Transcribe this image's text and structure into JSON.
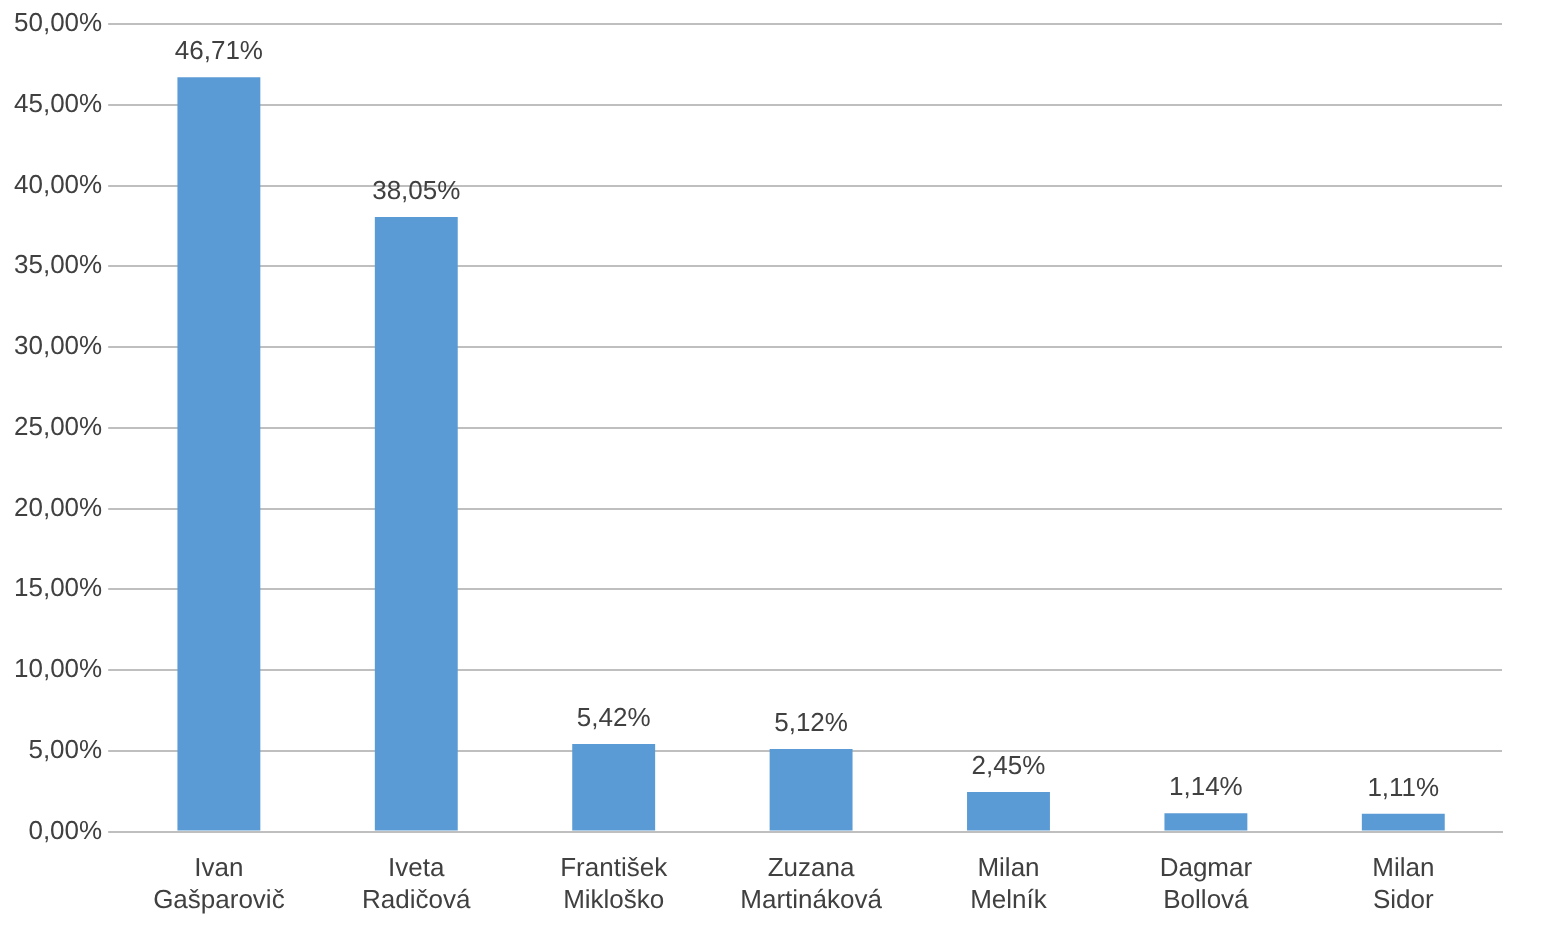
{
  "chart_data": {
    "type": "bar",
    "categories": [
      "Ivan Gašparovič",
      "Iveta Radičová",
      "František Mikloško",
      "Zuzana Martináková",
      "Milan Melník",
      "Dagmar Bollová",
      "Milan Sidor"
    ],
    "values": [
      46.71,
      38.05,
      5.42,
      5.12,
      2.45,
      1.14,
      1.11
    ],
    "value_labels": [
      "46,71%",
      "38,05%",
      "5,42%",
      "5,12%",
      "2,45%",
      "1,14%",
      "1,11%"
    ],
    "color": "#5b9bd5",
    "ylim": [
      0,
      50
    ],
    "yticks": [
      {
        "value": 0,
        "label": "0,00%"
      },
      {
        "value": 5,
        "label": "5,00%"
      },
      {
        "value": 10,
        "label": "10,00%"
      },
      {
        "value": 15,
        "label": "15,00%"
      },
      {
        "value": 20,
        "label": "20,00%"
      },
      {
        "value": 25,
        "label": "25,00%"
      },
      {
        "value": 30,
        "label": "30,00%"
      },
      {
        "value": 35,
        "label": "35,00%"
      },
      {
        "value": 40,
        "label": "40,00%"
      },
      {
        "value": 45,
        "label": "45,00%"
      },
      {
        "value": 50,
        "label": "50,00%"
      }
    ],
    "grid": "y",
    "legend": false
  }
}
